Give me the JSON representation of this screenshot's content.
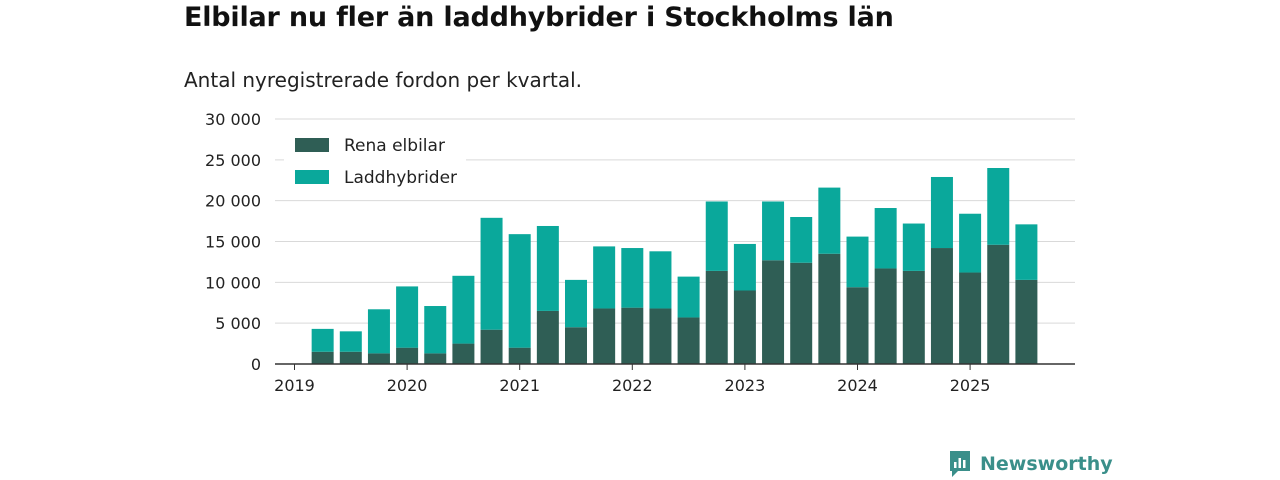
{
  "header": {
    "title": "Elbilar nu fler än laddhybrider i Stockholms län",
    "subtitle": "Antal nyregistrerade fordon per kvartal."
  },
  "brand": {
    "name": "Newsworthy",
    "color": "#3a8f8a"
  },
  "colors": {
    "electric": "#2f5e55",
    "hybrid": "#0aa89b",
    "grid": "#d9d9d9",
    "axis": "#333333"
  },
  "chart_data": {
    "type": "bar",
    "stacked": true,
    "title": "Elbilar nu fler än laddhybrider i Stockholms län",
    "subtitle": "Antal nyregistrerade fordon per kvartal.",
    "categories": [
      "2019Q2",
      "2019Q3",
      "2019Q4",
      "2020Q1",
      "2020Q2",
      "2020Q3",
      "2020Q4",
      "2021Q1",
      "2021Q2",
      "2021Q3",
      "2021Q4",
      "2022Q1",
      "2022Q2",
      "2022Q3",
      "2022Q4",
      "2023Q1",
      "2023Q2",
      "2023Q3",
      "2023Q4",
      "2024Q1",
      "2024Q2",
      "2024Q3",
      "2024Q4",
      "2025Q1",
      "2025Q2",
      "2025Q3"
    ],
    "series": [
      {
        "name": "Rena elbilar",
        "color": "#2f5e55",
        "values": [
          1500,
          1500,
          1300,
          2000,
          1300,
          2500,
          4200,
          2000,
          6500,
          4500,
          6800,
          6900,
          6800,
          5700,
          11400,
          9000,
          12700,
          12400,
          13500,
          9400,
          11700,
          11400,
          14200,
          11200,
          14600,
          10300
        ]
      },
      {
        "name": "Laddhybrider",
        "color": "#0aa89b",
        "values": [
          2800,
          2500,
          5400,
          7500,
          5800,
          8300,
          13700,
          13900,
          10400,
          5800,
          7600,
          7300,
          7000,
          5000,
          8500,
          5700,
          7200,
          5600,
          8100,
          6200,
          7400,
          5800,
          8700,
          7200,
          9400,
          6800
        ]
      }
    ],
    "x_ticks": [
      {
        "label": "2019",
        "at": "2019Q1"
      },
      {
        "label": "2020",
        "at": "2020Q1"
      },
      {
        "label": "2021",
        "at": "2021Q1"
      },
      {
        "label": "2022",
        "at": "2022Q1"
      },
      {
        "label": "2023",
        "at": "2023Q1"
      },
      {
        "label": "2024",
        "at": "2024Q1"
      },
      {
        "label": "2025",
        "at": "2025Q1"
      }
    ],
    "y_ticks": [
      0,
      5000,
      10000,
      15000,
      20000,
      25000,
      30000
    ],
    "y_tick_labels": [
      "0",
      "5 000",
      "10 000",
      "15 000",
      "20 000",
      "25 000",
      "30 000"
    ],
    "ylim": [
      0,
      30000
    ],
    "xlabel": "",
    "ylabel": "",
    "grid": true,
    "legend_position": "top-left"
  }
}
